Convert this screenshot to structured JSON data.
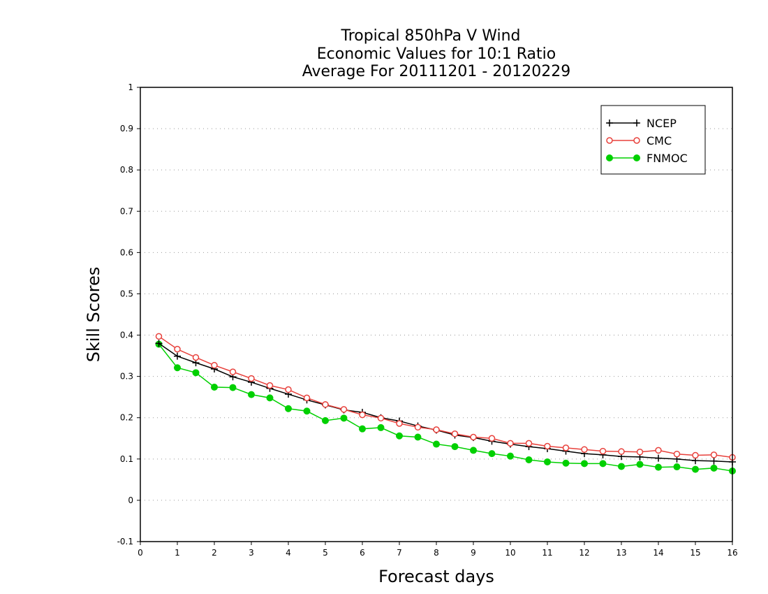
{
  "chart_data": {
    "type": "line",
    "title_lines": [
      "Tropical 850hPa V Wind",
      "Economic Values for 10:1 Ratio",
      "Average For 20111201 - 20120229"
    ],
    "xlabel": "Forecast days",
    "ylabel": "Skill Scores",
    "xlim": [
      0,
      16
    ],
    "ylim": [
      -0.1,
      1
    ],
    "x_ticks": [
      0,
      1,
      2,
      3,
      4,
      5,
      6,
      7,
      8,
      9,
      10,
      11,
      12,
      13,
      14,
      15,
      16
    ],
    "y_ticks": [
      -0.1,
      0,
      0.1,
      0.2,
      0.3,
      0.4,
      0.5,
      0.6,
      0.7,
      0.8,
      0.9,
      1
    ],
    "y_tick_labels": [
      "-0.1",
      "0",
      "0.1",
      "0.2",
      "0.3",
      "0.4",
      "0.5",
      "0.6",
      "0.7",
      "0.8",
      "0.9",
      "1"
    ],
    "grid": "horizontal dotted",
    "legend_position": "top-right",
    "x": [
      0.5,
      1,
      1.5,
      2,
      2.5,
      3,
      3.5,
      4,
      4.5,
      5,
      5.5,
      6,
      6.5,
      7,
      7.5,
      8,
      8.5,
      9,
      9.5,
      10,
      10.5,
      11,
      11.5,
      12,
      12.5,
      13,
      13.5,
      14,
      14.5,
      15,
      15.5,
      16
    ],
    "series": [
      {
        "name": "NCEP",
        "color": "#000000",
        "marker": "plus",
        "values": [
          0.38,
          0.349,
          0.333,
          0.318,
          0.299,
          0.286,
          0.271,
          0.257,
          0.243,
          0.231,
          0.219,
          0.213,
          0.2,
          0.192,
          0.18,
          0.17,
          0.158,
          0.152,
          0.143,
          0.136,
          0.13,
          0.125,
          0.119,
          0.113,
          0.11,
          0.106,
          0.105,
          0.102,
          0.1,
          0.096,
          0.095,
          0.093
        ]
      },
      {
        "name": "CMC",
        "color": "#e8413c",
        "marker": "open-circle",
        "values": [
          0.397,
          0.366,
          0.346,
          0.327,
          0.311,
          0.295,
          0.278,
          0.268,
          0.248,
          0.232,
          0.22,
          0.207,
          0.199,
          0.186,
          0.177,
          0.171,
          0.161,
          0.153,
          0.15,
          0.138,
          0.138,
          0.131,
          0.127,
          0.123,
          0.119,
          0.118,
          0.117,
          0.121,
          0.112,
          0.109,
          0.11,
          0.104
        ]
      },
      {
        "name": "FNMOC",
        "color": "#00d000",
        "marker": "filled-circle",
        "values": [
          0.378,
          0.321,
          0.309,
          0.274,
          0.273,
          0.256,
          0.248,
          0.222,
          0.216,
          0.193,
          0.199,
          0.173,
          0.176,
          0.156,
          0.153,
          0.136,
          0.13,
          0.121,
          0.113,
          0.107,
          0.098,
          0.093,
          0.09,
          0.089,
          0.089,
          0.082,
          0.087,
          0.08,
          0.081,
          0.075,
          0.078,
          0.071
        ]
      }
    ]
  }
}
